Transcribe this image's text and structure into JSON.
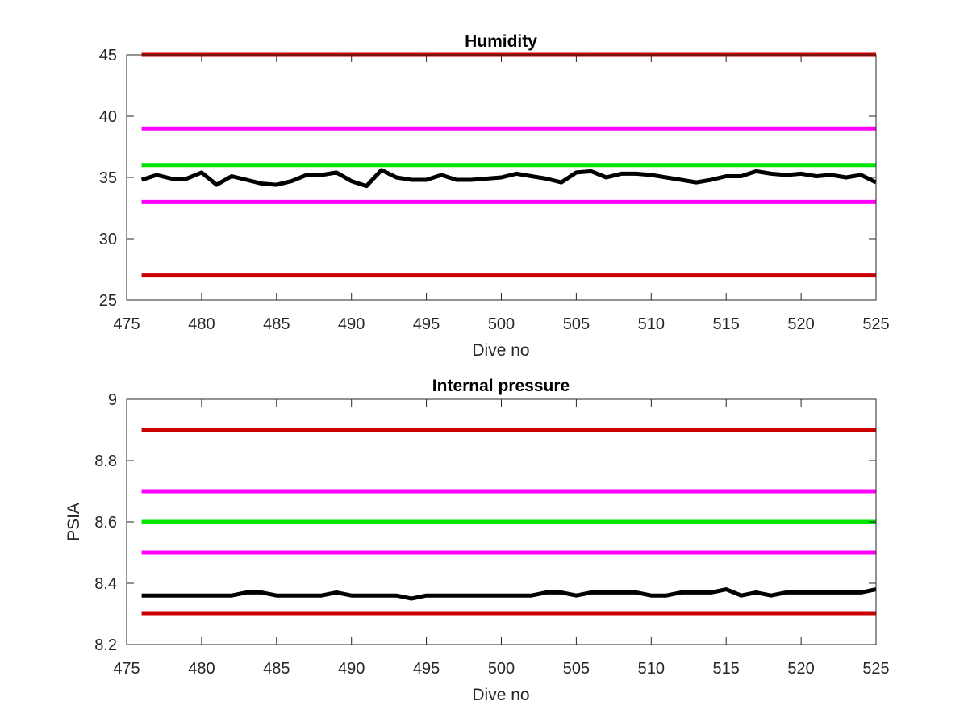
{
  "chart_data": [
    {
      "type": "line",
      "title": "Humidity",
      "xlabel": "Dive no",
      "ylabel": "",
      "xlim": [
        475,
        525
      ],
      "ylim": [
        25,
        45
      ],
      "xticks": [
        475,
        480,
        485,
        490,
        495,
        500,
        505,
        510,
        515,
        520,
        525
      ],
      "yticks": [
        25,
        30,
        35,
        40,
        45
      ],
      "x": [
        476,
        477,
        478,
        479,
        480,
        481,
        482,
        483,
        484,
        485,
        486,
        487,
        488,
        489,
        490,
        491,
        492,
        493,
        494,
        495,
        496,
        497,
        498,
        499,
        500,
        501,
        502,
        503,
        504,
        505,
        506,
        507,
        508,
        509,
        510,
        511,
        512,
        513,
        514,
        515,
        516,
        517,
        518,
        519,
        520,
        521,
        522,
        523,
        524,
        525
      ],
      "series": [
        {
          "role": "measurement",
          "color": "#000000",
          "values": [
            34.8,
            35.2,
            34.9,
            34.9,
            35.4,
            34.4,
            35.1,
            34.8,
            34.5,
            34.4,
            34.7,
            35.2,
            35.2,
            35.4,
            34.7,
            34.3,
            35.6,
            35.0,
            34.8,
            34.8,
            35.2,
            34.8,
            34.8,
            34.9,
            35.0,
            35.3,
            35.1,
            34.9,
            34.6,
            35.4,
            35.5,
            35.0,
            35.3,
            35.3,
            35.2,
            35.0,
            34.8,
            34.6,
            34.8,
            35.1,
            35.1,
            35.5,
            35.3,
            35.2,
            35.3,
            35.1,
            35.2,
            35.0,
            35.2,
            34.6
          ]
        },
        {
          "role": "limit",
          "color": "#cc0000",
          "values_const": 45
        },
        {
          "role": "limit",
          "color": "#cc0000",
          "values_const": 27
        },
        {
          "role": "warning",
          "color": "#ff00ff",
          "values_const": 39
        },
        {
          "role": "warning",
          "color": "#ff00ff",
          "values_const": 33
        },
        {
          "role": "nominal",
          "color": "#00e600",
          "values_const": 36
        }
      ]
    },
    {
      "type": "line",
      "title": "Internal pressure",
      "xlabel": "Dive no",
      "ylabel": "PSIA",
      "xlim": [
        475,
        525
      ],
      "ylim": [
        8.2,
        9
      ],
      "xticks": [
        475,
        480,
        485,
        490,
        495,
        500,
        505,
        510,
        515,
        520,
        525
      ],
      "yticks": [
        8.2,
        8.4,
        8.6,
        8.8,
        9
      ],
      "x": [
        476,
        477,
        478,
        479,
        480,
        481,
        482,
        483,
        484,
        485,
        486,
        487,
        488,
        489,
        490,
        491,
        492,
        493,
        494,
        495,
        496,
        497,
        498,
        499,
        500,
        501,
        502,
        503,
        504,
        505,
        506,
        507,
        508,
        509,
        510,
        511,
        512,
        513,
        514,
        515,
        516,
        517,
        518,
        519,
        520,
        521,
        522,
        523,
        524,
        525
      ],
      "series": [
        {
          "role": "measurement",
          "color": "#000000",
          "values": [
            8.36,
            8.36,
            8.36,
            8.36,
            8.36,
            8.36,
            8.36,
            8.37,
            8.37,
            8.36,
            8.36,
            8.36,
            8.36,
            8.37,
            8.36,
            8.36,
            8.36,
            8.36,
            8.35,
            8.36,
            8.36,
            8.36,
            8.36,
            8.36,
            8.36,
            8.36,
            8.36,
            8.37,
            8.37,
            8.36,
            8.37,
            8.37,
            8.37,
            8.37,
            8.36,
            8.36,
            8.37,
            8.37,
            8.37,
            8.38,
            8.36,
            8.37,
            8.36,
            8.37,
            8.37,
            8.37,
            8.37,
            8.37,
            8.37,
            8.38
          ]
        },
        {
          "role": "limit",
          "color": "#cc0000",
          "values_const": 8.9
        },
        {
          "role": "limit",
          "color": "#cc0000",
          "values_const": 8.3
        },
        {
          "role": "warning",
          "color": "#ff00ff",
          "values_const": 8.7
        },
        {
          "role": "warning",
          "color": "#ff00ff",
          "values_const": 8.5
        },
        {
          "role": "nominal",
          "color": "#00e600",
          "values_const": 8.6
        }
      ]
    }
  ]
}
